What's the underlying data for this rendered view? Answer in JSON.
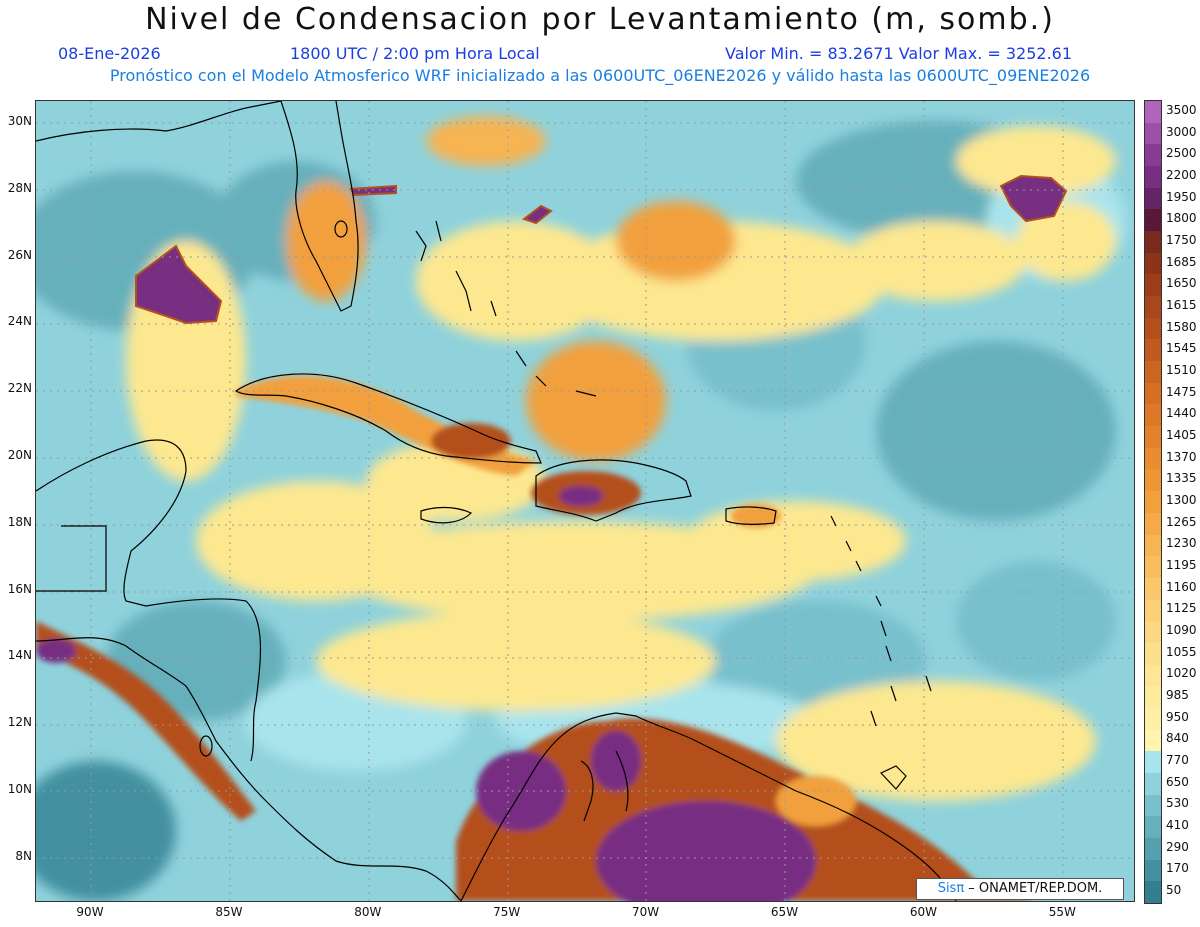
{
  "title": "Nivel de Condensacion por Levantamiento (m, somb.)",
  "date": "08-Ene-2026",
  "time": "1800 UTC / 2:00 pm Hora Local",
  "minmax": "Valor Min. = 83.2671  Valor Max. = 3252.61",
  "init": "Pronóstico con el Modelo Atmosferico WRF inicializado a las 0600UTC_06ENE2026 y válido hasta las  0600UTC_09ENE2026",
  "credit": {
    "sis": "Sisπ",
    "rest": " – ONAMET/REP.DOM."
  },
  "lat_labels": [
    "30N",
    "28N",
    "26N",
    "24N",
    "22N",
    "20N",
    "18N",
    "16N",
    "14N",
    "12N",
    "10N",
    "8N"
  ],
  "lon_labels": [
    "90W",
    "85W",
    "80W",
    "75W",
    "70W",
    "65W",
    "60W",
    "55W"
  ],
  "legend": [
    {
      "label": "3500",
      "color": "#b064ba"
    },
    {
      "label": "3000",
      "color": "#9e4fa9"
    },
    {
      "label": "2500",
      "color": "#8a3b96"
    },
    {
      "label": "2200",
      "color": "#772f82"
    },
    {
      "label": "1950",
      "color": "#642468"
    },
    {
      "label": "1800",
      "color": "#5a1838"
    },
    {
      "label": "1750",
      "color": "#7a2a1c"
    },
    {
      "label": "1685",
      "color": "#8c3418"
    },
    {
      "label": "1650",
      "color": "#9c3e1a"
    },
    {
      "label": "1615",
      "color": "#a8461c"
    },
    {
      "label": "1580",
      "color": "#b4501e"
    },
    {
      "label": "1545",
      "color": "#c05a20"
    },
    {
      "label": "1510",
      "color": "#cc6422"
    },
    {
      "label": "1475",
      "color": "#d66e24"
    },
    {
      "label": "1440",
      "color": "#de7828"
    },
    {
      "label": "1405",
      "color": "#e4822c"
    },
    {
      "label": "1370",
      "color": "#ea8c30"
    },
    {
      "label": "1335",
      "color": "#ee9636"
    },
    {
      "label": "1300",
      "color": "#f2a03c"
    },
    {
      "label": "1265",
      "color": "#f4aa46"
    },
    {
      "label": "1230",
      "color": "#f6b452"
    },
    {
      "label": "1195",
      "color": "#f8be5e"
    },
    {
      "label": "1160",
      "color": "#fac86a"
    },
    {
      "label": "1125",
      "color": "#fbd076"
    },
    {
      "label": "1090",
      "color": "#fcd882"
    },
    {
      "label": "1055",
      "color": "#fde08c"
    },
    {
      "label": "1020",
      "color": "#fee696"
    },
    {
      "label": "985",
      "color": "#feec9e"
    },
    {
      "label": "950",
      "color": "#fff0a6"
    },
    {
      "label": "840",
      "color": "#fff4b0"
    },
    {
      "label": "770",
      "color": "#a9e4ec"
    },
    {
      "label": "650",
      "color": "#8fd2dc"
    },
    {
      "label": "530",
      "color": "#78c0cc"
    },
    {
      "label": "410",
      "color": "#66b0bc"
    },
    {
      "label": "290",
      "color": "#54a0ae"
    },
    {
      "label": "170",
      "color": "#4290a0"
    },
    {
      "label": "50",
      "color": "#327f92"
    }
  ],
  "colors": {
    "ocean": "#8fd2dc",
    "light": "#a9e4ec",
    "mid": "#66b0bc",
    "yellow": "#fde890",
    "orange": "#f2a03c",
    "brown": "#b4501e",
    "purple": "#772f82",
    "coast": "#000000"
  }
}
